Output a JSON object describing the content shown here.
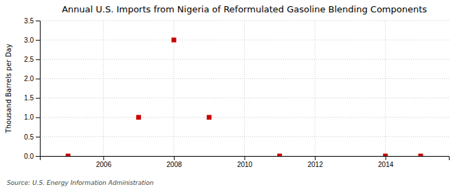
{
  "chart_data": {
    "type": "scatter",
    "title": "Annual U.S. Imports from Nigeria of Reformulated Gasoline Blending Components",
    "ylabel": "Thousand Barrels per Day",
    "annotations": [
      "Source: U.S. Energy Information Administration"
    ],
    "x": [
      2005,
      2007,
      2008,
      2009,
      2011,
      2014,
      2015
    ],
    "values": [
      0.0,
      1.0,
      3.0,
      1.0,
      0.0,
      0.0,
      0.0
    ],
    "color": "#cc0000",
    "marker": "square",
    "xlim": [
      2004.2,
      2015.8
    ],
    "ylim": [
      0.0,
      3.5
    ],
    "xticks": [
      2006,
      2008,
      2010,
      2012,
      2014
    ],
    "yticks": [
      {
        "value": 0.0,
        "label": "0.0"
      },
      0.5,
      {
        "value": 1.0,
        "label": "1.0"
      },
      1.5,
      {
        "value": 2.0,
        "label": "2.0"
      },
      2.5,
      {
        "value": 3.0,
        "label": "3.0"
      },
      3.5
    ],
    "grid": true
  }
}
